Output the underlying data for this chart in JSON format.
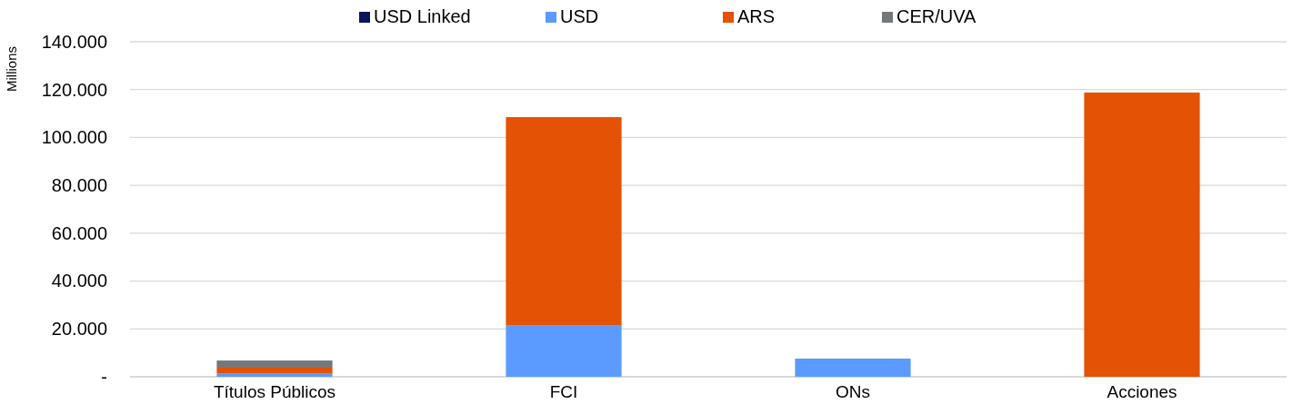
{
  "chart_data": {
    "type": "bar",
    "stacked": true,
    "ylabel": "Millions",
    "categories": [
      "Títulos Públicos",
      "FCI",
      "ONs",
      "Acciones"
    ],
    "series": [
      {
        "name": "USD Linked",
        "color": "#0c1559",
        "values": [
          0,
          0,
          0,
          0
        ]
      },
      {
        "name": "USD",
        "color": "#5b9aff",
        "values": [
          1300,
          21600,
          7600,
          0
        ]
      },
      {
        "name": "ARS",
        "color": "#e35205",
        "values": [
          2500,
          86900,
          0,
          118800
        ]
      },
      {
        "name": "CER/UVA",
        "color": "#75787b",
        "values": [
          3000,
          0,
          0,
          0
        ]
      }
    ],
    "ylim": [
      0,
      140000
    ],
    "yticks": [
      {
        "value": 0,
        "label": "-"
      },
      {
        "value": 20000,
        "label": "20.000"
      },
      {
        "value": 40000,
        "label": "40.000"
      },
      {
        "value": 60000,
        "label": "60.000"
      },
      {
        "value": 80000,
        "label": "80.000"
      },
      {
        "value": 100000,
        "label": "100.000"
      },
      {
        "value": 120000,
        "label": "120.000"
      },
      {
        "value": 140000,
        "label": "140.000"
      }
    ],
    "grid": "y",
    "legend": "top"
  }
}
